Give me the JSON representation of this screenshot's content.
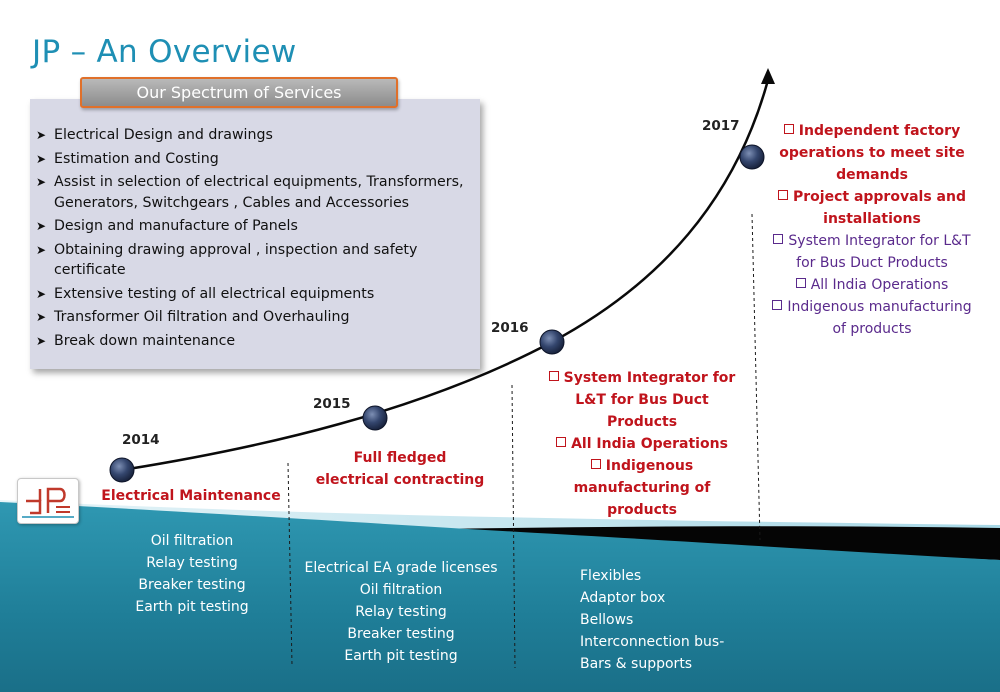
{
  "title": "JP – An Overview",
  "services": {
    "header": "Our Spectrum of Services",
    "items": [
      "Electrical Design and drawings",
      "Estimation and Costing",
      "Assist in selection of electrical equipments, Transformers, Generators, Switchgears , Cables and Accessories",
      "Design and manufacture of  Panels",
      "Obtaining drawing approval , inspection and safety certificate",
      "Extensive testing of all electrical equipments",
      "Transformer Oil filtration and Overhauling",
      "Break down maintenance"
    ]
  },
  "timeline": [
    {
      "year": "2014",
      "milestones": [
        "Electrical Maintenance"
      ],
      "activities": [
        "Oil filtration",
        "Relay testing",
        "Breaker testing",
        "Earth pit testing"
      ]
    },
    {
      "year": "2015",
      "milestones": [
        "Full fledged",
        "electrical contracting"
      ],
      "activities": [
        "Electrical EA grade licenses",
        "Oil filtration",
        "Relay testing",
        "Breaker testing",
        "Earth pit testing"
      ]
    },
    {
      "year": "2016",
      "milestones": [
        "System Integrator for",
        "L&T for Bus Duct",
        "Products",
        "All India Operations",
        "Indigenous",
        "manufacturing of",
        "products"
      ],
      "activities": [
        "Flexibles",
        "Adaptor box",
        "Bellows",
        "Interconnection bus-",
        "Bars & supports"
      ]
    },
    {
      "year": "2017",
      "milestones": [
        "Independent factory",
        "operations to meet site",
        "demands",
        "Project approvals and",
        "installations"
      ],
      "secondary": [
        "System Integrator for L&T",
        "for Bus Duct Products",
        "All India Operations",
        "Indigenous manufacturing",
        "of products"
      ]
    }
  ],
  "colors": {
    "title": "#1e8fb4",
    "milestone_red": "#c0141c",
    "secondary_purple": "#5a2a8c",
    "band_teal": "#1f7e98",
    "band_light": "#bfe3ee",
    "node": "#2c3e64"
  },
  "icons": {
    "bullet": "arrow-bullet-icon",
    "checkbox": "checkbox-icon",
    "logo": "jp-logo-icon"
  }
}
